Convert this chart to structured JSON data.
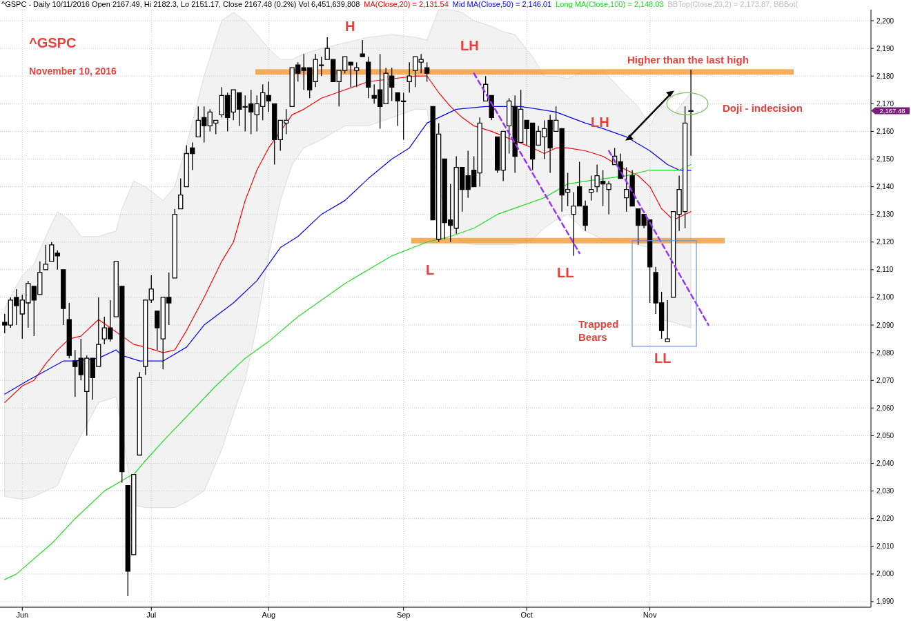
{
  "chart_data": {
    "type": "candlestick",
    "title": "^GSPC - Daily 10/11/2016 Open 2167.49, Hi 2182.3, Lo 2151.17, Close 2167.48 (0.2%) Vol 6,451,639,808",
    "categories": [
      null,
      null,
      null,
      "Jun",
      null,
      null,
      null,
      null,
      null,
      null,
      null,
      null,
      null,
      null,
      null,
      null,
      null,
      null,
      null,
      null,
      null,
      null,
      null,
      null,
      null,
      "Jul",
      null,
      null,
      null,
      null,
      null,
      null,
      null,
      null,
      null,
      null,
      null,
      null,
      null,
      null,
      null,
      null,
      null,
      null,
      null,
      "Aug",
      null,
      null,
      null,
      null,
      null,
      null,
      null,
      null,
      null,
      null,
      null,
      null,
      null,
      null,
      null,
      null,
      null,
      null,
      null,
      null,
      null,
      null,
      "Sep",
      null,
      null,
      null,
      null,
      null,
      null,
      null,
      null,
      null,
      null,
      null,
      null,
      null,
      null,
      null,
      null,
      null,
      null,
      null,
      null,
      "Oct",
      null,
      null,
      null,
      null,
      null,
      null,
      null,
      null,
      null,
      null,
      null,
      null,
      null,
      null,
      null,
      null,
      null,
      null,
      null,
      null,
      "Nov",
      null,
      null,
      null,
      null,
      null,
      null,
      null,
      null,
      null,
      null,
      null,
      null,
      null,
      null,
      null,
      null,
      null,
      null,
      null,
      null,
      null,
      null,
      null,
      null,
      null,
      null,
      null,
      null,
      null,
      null,
      null,
      null,
      null,
      null,
      null,
      null,
      null
    ],
    "color": "#000000",
    "ohlc": [
      [
        2091,
        2094,
        2087,
        2090
      ],
      [
        2090,
        2100,
        2089,
        2099
      ],
      [
        2100,
        2103,
        2090,
        2097
      ],
      [
        2094,
        2101,
        2085,
        2099
      ],
      [
        2098,
        2106,
        2089,
        2105
      ],
      [
        2104,
        2104,
        2086,
        2099
      ],
      [
        2101,
        2113,
        2101,
        2109
      ],
      [
        2110,
        2119,
        2110,
        2112
      ],
      [
        2113,
        2120,
        2113,
        2119
      ],
      [
        2116,
        2117,
        2110,
        2115
      ],
      [
        2110,
        2110,
        2090,
        2096
      ],
      [
        2092,
        2098,
        2078,
        2079
      ],
      [
        2077,
        2081,
        2064,
        2075
      ],
      [
        2078,
        2085,
        2070,
        2072
      ],
      [
        2066,
        2079,
        2050,
        2078
      ],
      [
        2078,
        2078,
        2063,
        2071
      ],
      [
        2075,
        2100,
        2075,
        2083
      ],
      [
        2085,
        2093,
        2083,
        2089
      ],
      [
        2089,
        2099,
        2084,
        2085
      ],
      [
        2093,
        2113,
        2093,
        2113
      ],
      [
        2104,
        2104,
        2033,
        2037
      ],
      [
        2032,
        2032,
        1992,
        2001
      ],
      [
        2007,
        2036,
        2007,
        2036
      ],
      [
        2043,
        2073,
        2043,
        2071
      ],
      [
        2075,
        2099,
        2072,
        2099
      ],
      [
        2099,
        2108,
        2098,
        2103
      ],
      [
        2095,
        2095,
        2081,
        2089
      ],
      [
        2085,
        2100,
        2074,
        2100
      ],
      [
        2100,
        2109,
        2090,
        2098
      ],
      [
        2107,
        2132,
        2107,
        2130
      ],
      [
        2132,
        2143,
        2132,
        2137
      ],
      [
        2140,
        2155,
        2140,
        2152
      ],
      [
        2154,
        2156,
        2146,
        2152
      ],
      [
        2158,
        2169,
        2158,
        2164
      ],
      [
        2165,
        2169,
        2156,
        2162
      ],
      [
        2162,
        2168,
        2160,
        2167
      ],
      [
        2163,
        2164,
        2159,
        2164
      ],
      [
        2166,
        2176,
        2165,
        2173
      ],
      [
        2173,
        2174,
        2160,
        2165
      ],
      [
        2167,
        2175,
        2164,
        2175
      ],
      [
        2174,
        2174,
        2162,
        2168
      ],
      [
        2169,
        2173,
        2160,
        2169
      ],
      [
        2170,
        2175,
        2159,
        2167
      ],
      [
        2166,
        2173,
        2160,
        2170
      ],
      [
        2169,
        2177,
        2164,
        2174
      ],
      [
        2173,
        2178,
        2167,
        2171
      ],
      [
        2170,
        2170,
        2148,
        2157
      ],
      [
        2157,
        2164,
        2153,
        2164
      ],
      [
        2163,
        2168,
        2159,
        2164
      ],
      [
        2169,
        2183,
        2169,
        2183
      ],
      [
        2184,
        2185,
        2178,
        2181
      ],
      [
        2183,
        2188,
        2175,
        2182
      ],
      [
        2183,
        2183,
        2172,
        2175
      ],
      [
        2178,
        2188,
        2176,
        2186
      ],
      [
        2184,
        2187,
        2180,
        2184
      ],
      [
        2186,
        2194,
        2186,
        2190
      ],
      [
        2186,
        2186,
        2178,
        2178
      ],
      [
        2178,
        2182,
        2169,
        2182
      ],
      [
        2182,
        2187,
        2181,
        2187
      ],
      [
        2185,
        2185,
        2176,
        2184
      ],
      [
        2182,
        2185,
        2176,
        2183
      ],
      [
        2188,
        2193,
        2187,
        2187
      ],
      [
        2185,
        2187,
        2172,
        2176
      ],
      [
        2173,
        2177,
        2170,
        2172
      ],
      [
        2175,
        2188,
        2161,
        2169
      ],
      [
        2170,
        2183,
        2170,
        2181
      ],
      [
        2180,
        2183,
        2171,
        2176
      ],
      [
        2174,
        2174,
        2162,
        2171
      ],
      [
        2171,
        2174,
        2157,
        2171
      ],
      [
        2178,
        2185,
        2174,
        2180
      ],
      [
        2182,
        2187,
        2176,
        2187
      ],
      [
        2185,
        2188,
        2181,
        2186
      ],
      [
        2183,
        2185,
        2178,
        2181
      ],
      [
        2169,
        2169,
        2128,
        2128
      ],
      [
        2121,
        2163,
        2120,
        2159
      ],
      [
        2150,
        2150,
        2121,
        2127
      ],
      [
        2128,
        2141,
        2120,
        2126
      ],
      [
        2125,
        2151,
        2123,
        2147
      ],
      [
        2147,
        2147,
        2131,
        2139
      ],
      [
        2144,
        2153,
        2136,
        2139
      ],
      [
        2146,
        2151,
        2140,
        2140
      ],
      [
        2145,
        2165,
        2140,
        2163
      ],
      [
        2171,
        2180,
        2171,
        2177
      ],
      [
        2173,
        2173,
        2164,
        2165
      ],
      [
        2158,
        2158,
        2145,
        2146
      ],
      [
        2146,
        2160,
        2142,
        2160
      ],
      [
        2162,
        2172,
        2152,
        2171
      ],
      [
        2169,
        2173,
        2145,
        2151
      ],
      [
        2156,
        2175,
        2156,
        2168
      ],
      [
        2164,
        2164,
        2155,
        2161
      ],
      [
        2163,
        2163,
        2146,
        2150
      ],
      [
        2155,
        2162,
        2155,
        2160
      ],
      [
        2158,
        2164,
        2150,
        2161
      ],
      [
        2164,
        2166,
        2145,
        2154
      ],
      [
        2160,
        2169,
        2160,
        2164
      ],
      [
        2161,
        2161,
        2131,
        2137
      ],
      [
        2138,
        2145,
        2133,
        2139
      ],
      [
        2130,
        2138,
        2115,
        2133
      ],
      [
        2140,
        2149,
        2133,
        2133
      ],
      [
        2133,
        2135,
        2124,
        2126
      ],
      [
        2138,
        2144,
        2135,
        2139
      ],
      [
        2140,
        2148,
        2138,
        2144
      ],
      [
        2142,
        2146,
        2133,
        2141
      ],
      [
        2139,
        2142,
        2130,
        2141
      ],
      [
        2148,
        2154,
        2148,
        2151
      ],
      [
        2149,
        2152,
        2143,
        2143
      ],
      [
        2136,
        2147,
        2131,
        2139
      ],
      [
        2144,
        2146,
        2133,
        2133
      ],
      [
        2132,
        2132,
        2119,
        2126
      ],
      [
        2130,
        2130,
        2125,
        2126
      ],
      [
        2128,
        2128,
        2098,
        2111
      ],
      [
        2109,
        2111,
        2094,
        2098
      ],
      [
        2098,
        2102,
        2085,
        2088
      ],
      [
        2084,
        2099,
        2084,
        2085
      ],
      [
        2100,
        2131,
        2100,
        2131
      ],
      [
        2130,
        2144,
        2124,
        2139
      ],
      [
        2131,
        2169,
        2125,
        2163
      ],
      [
        2167.49,
        2182.3,
        2151.17,
        2167.48
      ],
      null,
      null,
      null,
      null,
      null,
      null,
      null,
      null,
      null,
      null,
      null,
      null,
      null,
      null,
      null,
      null,
      null,
      null,
      null,
      null,
      null,
      null,
      null,
      null,
      null,
      null,
      null,
      null,
      null,
      null
    ],
    "series": [
      {
        "type": "line",
        "name": "MA(Close,20) = 2,131.54",
        "color": "#ff0000",
        "values": [
          2062,
          null,
          null,
          2068,
          null,
          2070,
          null,
          2076,
          null,
          2081,
          null,
          2085,
          null,
          2086,
          null,
          null,
          2092,
          null,
          null,
          null,
          null,
          null,
          2083,
          null,
          2082,
          null,
          null,
          2080,
          null,
          2081,
          null,
          2088,
          null,
          null,
          2100,
          null,
          null,
          2113,
          null,
          2120,
          null,
          2135,
          null,
          2146,
          null,
          2154,
          null,
          2160,
          null,
          2166,
          null,
          2168,
          null,
          null,
          2172,
          null,
          null,
          null,
          2175,
          null,
          null,
          null,
          2178,
          null,
          null,
          null,
          2179,
          null,
          null,
          null,
          2180,
          null,
          2180,
          null,
          2174,
          null,
          2169,
          null,
          2165,
          null,
          2162,
          null,
          null,
          2160,
          null,
          null,
          null,
          null,
          null,
          null,
          2154,
          null,
          2152,
          null,
          2154,
          null,
          2154,
          null,
          null,
          2153,
          null,
          null,
          2151,
          null,
          null,
          null,
          2146,
          null,
          2144,
          null,
          2140,
          null,
          2132,
          null,
          2128,
          null,
          null,
          2131,
          null,
          null,
          null,
          null,
          null,
          null,
          null,
          null,
          null,
          null,
          null,
          null,
          null,
          null,
          null,
          null,
          null,
          null,
          null,
          null,
          null,
          null,
          null,
          null,
          null,
          null,
          null,
          null,
          null,
          null
        ],
        "lower": [
          2028,
          null,
          null,
          2027,
          null,
          2028,
          null,
          2030,
          null,
          2032,
          null,
          2042,
          null,
          2050,
          null,
          null,
          2062,
          null,
          null,
          2064,
          2052,
          null,
          2025,
          null,
          2024,
          null,
          null,
          2024,
          null,
          2024,
          null,
          2026,
          null,
          null,
          2030,
          null,
          null,
          2045,
          null,
          2058,
          null,
          2070,
          null,
          2090,
          null,
          2115,
          null,
          2135,
          null,
          2148,
          null,
          2154,
          null,
          null,
          2157,
          null,
          null,
          null,
          2162,
          null,
          null,
          null,
          2162,
          null,
          null,
          null,
          2165,
          null,
          null,
          null,
          2168,
          null,
          2168,
          null,
          2140,
          null,
          2125,
          null,
          2120,
          null,
          2119,
          null,
          null,
          2119,
          null,
          2119,
          null,
          2119,
          null,
          null,
          2121,
          null,
          2125,
          null,
          2128,
          null,
          2130,
          null,
          null,
          2124,
          null,
          null,
          2121,
          null,
          null,
          null,
          2120,
          null,
          2119,
          null,
          2118,
          null,
          2092,
          null,
          2091,
          null,
          null,
          2089,
          null,
          null,
          null,
          null,
          null,
          null,
          null,
          null,
          null,
          null,
          null,
          null,
          null,
          null,
          null,
          null,
          null,
          null,
          null,
          null,
          null,
          null,
          null,
          null,
          null,
          null,
          null,
          null,
          null,
          null
        ],
        "upper": [
          2096,
          null,
          null,
          2108,
          null,
          2112,
          null,
          2122,
          null,
          2131,
          null,
          2128,
          null,
          2122,
          null,
          null,
          2122,
          null,
          null,
          2124,
          2132,
          null,
          2142,
          null,
          2140,
          null,
          null,
          2135,
          null,
          2140,
          null,
          2155,
          null,
          null,
          2180,
          null,
          null,
          2200,
          null,
          2203,
          null,
          2200,
          null,
          2195,
          null,
          2190,
          null,
          2186,
          null,
          2186,
          null,
          2188,
          null,
          null,
          2190,
          null,
          null,
          null,
          2192,
          null,
          null,
          null,
          2194,
          null,
          null,
          null,
          2195,
          null,
          null,
          null,
          2194,
          null,
          2193,
          null,
          2204,
          null,
          2204,
          null,
          2203,
          null,
          2200,
          null,
          null,
          2198,
          null,
          2196,
          null,
          2195,
          null,
          null,
          2187,
          null,
          2180,
          null,
          2180,
          null,
          2179,
          null,
          null,
          2182,
          null,
          null,
          2182,
          null,
          null,
          null,
          2173,
          null,
          2169,
          null,
          2162,
          null,
          2170,
          null,
          2166,
          null,
          null,
          2174,
          null,
          null,
          null,
          null,
          null,
          null,
          null,
          null,
          null,
          null,
          null,
          null,
          null,
          null,
          null,
          null,
          null,
          null,
          null,
          null,
          null,
          null,
          null,
          null,
          null,
          null,
          null,
          null,
          null,
          null
        ]
      },
      {
        "type": "line",
        "name": "Mid MA(Close,50) = 2,146.01",
        "color": "#0000ff",
        "values": [
          2065,
          null,
          null,
          null,
          2070,
          null,
          null,
          null,
          null,
          null,
          2077,
          null,
          2077,
          null,
          null,
          null,
          2078,
          null,
          null,
          2081,
          2079,
          null,
          null,
          2077,
          null,
          null,
          null,
          2077,
          null,
          null,
          null,
          2082,
          null,
          null,
          2090,
          null,
          null,
          null,
          null,
          2098,
          null,
          null,
          null,
          2106,
          null,
          null,
          null,
          2118,
          null,
          null,
          2122,
          null,
          null,
          null,
          2130,
          null,
          null,
          null,
          2135,
          null,
          null,
          null,
          2143,
          null,
          null,
          null,
          2150,
          null,
          null,
          2154,
          null,
          2160,
          2163,
          null,
          null,
          2166,
          null,
          2168,
          null,
          null,
          null,
          null,
          2169,
          null,
          null,
          null,
          null,
          null,
          2169,
          null,
          null,
          null,
          null,
          null,
          2167,
          null,
          null,
          null,
          null,
          2163,
          null,
          null,
          2161,
          null,
          null,
          null,
          2158,
          null,
          null,
          null,
          2153,
          null,
          null,
          2148,
          null,
          2146,
          null,
          2146,
          null,
          null,
          null,
          null,
          null,
          null,
          null,
          null,
          null,
          null,
          null,
          null,
          null,
          null,
          null,
          null,
          null,
          null,
          null,
          null,
          null,
          null,
          null,
          null,
          null,
          null,
          null,
          null,
          null,
          null
        ]
      },
      {
        "type": "line",
        "name": "Long MA(Close,100) = 2,148.03",
        "color": "#22dd22",
        "values": [
          1998,
          null,
          2000,
          null,
          null,
          null,
          null,
          null,
          2011,
          null,
          null,
          null,
          2020,
          null,
          null,
          null,
          null,
          2030,
          null,
          null,
          null,
          2035,
          2036,
          null,
          2041,
          null,
          null,
          2048,
          null,
          null,
          null,
          null,
          null,
          null,
          null,
          null,
          2068,
          null,
          null,
          null,
          null,
          2078,
          null,
          null,
          null,
          2084,
          null,
          null,
          null,
          null,
          2093,
          null,
          null,
          null,
          null,
          null,
          null,
          null,
          2105,
          null,
          null,
          null,
          null,
          null,
          null,
          null,
          2115,
          null,
          null,
          null,
          null,
          null,
          2120,
          null,
          2121,
          null,
          2122,
          null,
          null,
          null,
          2125,
          null,
          null,
          null,
          2130,
          null,
          null,
          null,
          2133,
          null,
          null,
          null,
          2136,
          null,
          null,
          null,
          2141,
          null,
          null,
          2142,
          null,
          null,
          null,
          null,
          null,
          null,
          2144,
          null,
          null,
          null,
          2146,
          null,
          null,
          2146,
          null,
          2146,
          null,
          2148,
          null,
          null,
          null,
          null,
          null,
          null,
          null,
          null,
          null,
          null,
          null,
          null,
          null,
          null,
          null,
          null,
          null,
          null,
          null,
          null,
          null,
          null,
          null,
          null,
          null,
          null,
          null,
          null,
          null,
          null
        ]
      },
      {
        "type": "line",
        "color": "#9933ff",
        "line_style": "dashed",
        "values": [
          null,
          null,
          null,
          null,
          null,
          null,
          null,
          null,
          null,
          null,
          null,
          null,
          null,
          null,
          null,
          null,
          null,
          null,
          null,
          null,
          null,
          null,
          null,
          null,
          null,
          null,
          null,
          null,
          null,
          null,
          null,
          null,
          null,
          null,
          null,
          null,
          null,
          null,
          null,
          null,
          null,
          null,
          null,
          null,
          null,
          null,
          null,
          null,
          null,
          null,
          null,
          null,
          null,
          null,
          null,
          null,
          null,
          null,
          null,
          null,
          null,
          null,
          null,
          null,
          null,
          null,
          null,
          null,
          null,
          null,
          null,
          null,
          null,
          null,
          null,
          null,
          null,
          null,
          null,
          null,
          2181,
          null,
          null,
          null,
          null,
          null,
          null,
          null,
          null,
          null,
          null,
          null,
          null,
          null,
          null,
          null,
          null,
          null,
          2116,
          null,
          null,
          null,
          null,
          null,
          null,
          null,
          null,
          null,
          null,
          null,
          null,
          null,
          null,
          null,
          null,
          null,
          null,
          null,
          null,
          null,
          null,
          null,
          null,
          null,
          null,
          null,
          null,
          null,
          null,
          null,
          null,
          null,
          null,
          null,
          null,
          null,
          null,
          null,
          null,
          null,
          null,
          null,
          null,
          null,
          null,
          null,
          null,
          null
        ]
      },
      {
        "type": "line",
        "color": "#9933ff",
        "line_style": "dashed",
        "values": [
          null,
          null,
          null,
          null,
          null,
          null,
          null,
          null,
          null,
          null,
          null,
          null,
          null,
          null,
          null,
          null,
          null,
          null,
          null,
          null,
          null,
          null,
          null,
          null,
          null,
          null,
          null,
          null,
          null,
          null,
          null,
          null,
          null,
          null,
          null,
          null,
          null,
          null,
          null,
          null,
          null,
          null,
          null,
          null,
          null,
          null,
          null,
          null,
          null,
          null,
          null,
          null,
          null,
          null,
          null,
          null,
          null,
          null,
          null,
          null,
          null,
          null,
          null,
          null,
          null,
          null,
          null,
          null,
          null,
          null,
          null,
          null,
          null,
          null,
          null,
          null,
          null,
          null,
          null,
          null,
          null,
          null,
          null,
          null,
          null,
          null,
          null,
          null,
          null,
          null,
          null,
          null,
          null,
          null,
          null,
          null,
          null,
          null,
          null,
          null,
          null,
          null,
          null,
          2153,
          null,
          null,
          null,
          null,
          null,
          null,
          null,
          null,
          null,
          null,
          null,
          null,
          null,
          null,
          null,
          null,
          2090,
          null,
          null,
          null,
          null,
          null,
          null,
          null,
          null,
          null,
          null,
          null,
          null,
          null,
          null,
          null,
          null,
          null,
          null,
          null,
          null,
          null,
          null,
          null,
          null,
          null,
          null,
          null
        ]
      }
    ],
    "ref_lines": [
      {
        "axis": "y",
        "value": 2181.5,
        "color": "#f4a040"
      },
      {
        "axis": "y",
        "value": 2120.5,
        "color": "#f4a040"
      }
    ],
    "annotations": [
      "^GSPC",
      "November 10, 2016",
      "H",
      {
        "text": "LH",
        "y": 2180
      },
      "Higher than the last high",
      "Doji - indecision",
      "LH",
      {
        "text": "L",
        "y": 2120
      },
      "LL",
      "Trapped Bears",
      "LL",
      "2,167.48",
      "BBTop(Close,20,2) = 2,173.87, BBBot("
    ],
    "ylim": [
      1988,
      2204
    ],
    "yticks": [
      {
        "value": 1990,
        "label": "1,990"
      },
      {
        "value": 2000,
        "label": "2,000"
      },
      {
        "value": 2010,
        "label": "2,010"
      },
      {
        "value": 2020,
        "label": "2,020"
      },
      {
        "value": 2030,
        "label": "2,030"
      },
      {
        "value": 2040,
        "label": "2,040"
      },
      {
        "value": 2050,
        "label": "2,050"
      },
      {
        "value": 2060,
        "label": "2,060"
      },
      {
        "value": 2070,
        "label": "2,070"
      },
      {
        "value": 2080,
        "label": "2,080"
      },
      {
        "value": 2090,
        "label": "2,090"
      },
      {
        "value": 2100,
        "label": "2,100"
      },
      {
        "value": 2110,
        "label": "2,110"
      },
      {
        "value": 2120,
        "label": "2,120"
      },
      {
        "value": 2130,
        "label": "2,130"
      },
      {
        "value": 2140,
        "label": "2,140"
      },
      {
        "value": 2150,
        "label": "2,150"
      },
      {
        "value": 2160,
        "label": "2,160"
      },
      {
        "value": 2170,
        "label": "2,170"
      },
      {
        "value": 2180,
        "label": "2,180"
      },
      {
        "value": 2190,
        "label": "2,190"
      },
      {
        "value": 2200,
        "label": "2,200"
      }
    ],
    "grid": true,
    "legend": "top"
  }
}
